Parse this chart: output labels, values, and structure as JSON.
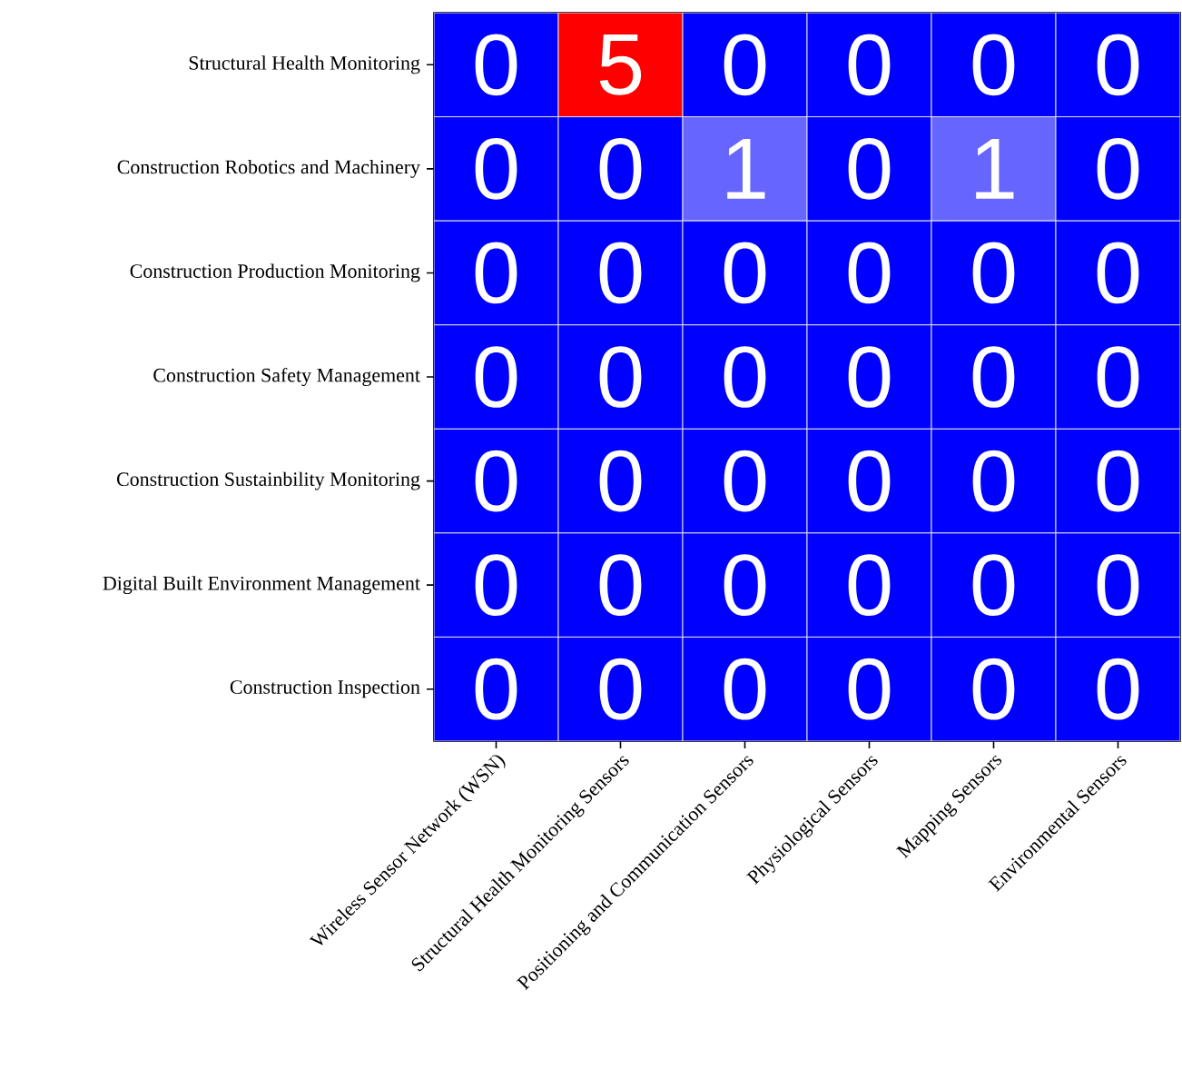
{
  "chart_data": {
    "type": "heatmap",
    "data_labels": true,
    "categories": [
      "Wireless Sensor Network (WSN)",
      "Structural Health Monitoring Sensors",
      "Positioning and Communication Sensors",
      "Physiological Sensors",
      "Mapping Sensors",
      "Environmental Sensors"
    ],
    "y_categories": [
      "Structural Health Monitoring",
      "Construction Robotics and Machinery",
      "Construction Production Monitoring",
      "Construction Safety Management",
      "Construction Sustainbility Monitoring",
      "Digital Built Environment Management",
      "Construction Inspection"
    ],
    "cells": [
      [
        0,
        5,
        0,
        0,
        0,
        0
      ],
      [
        0,
        0,
        1,
        0,
        1,
        0
      ],
      [
        0,
        0,
        0,
        0,
        0,
        0
      ],
      [
        0,
        0,
        0,
        0,
        0,
        0
      ],
      [
        0,
        0,
        0,
        0,
        0,
        0
      ],
      [
        0,
        0,
        0,
        0,
        0,
        0
      ],
      [
        0,
        0,
        0,
        0,
        0,
        0
      ]
    ]
  }
}
